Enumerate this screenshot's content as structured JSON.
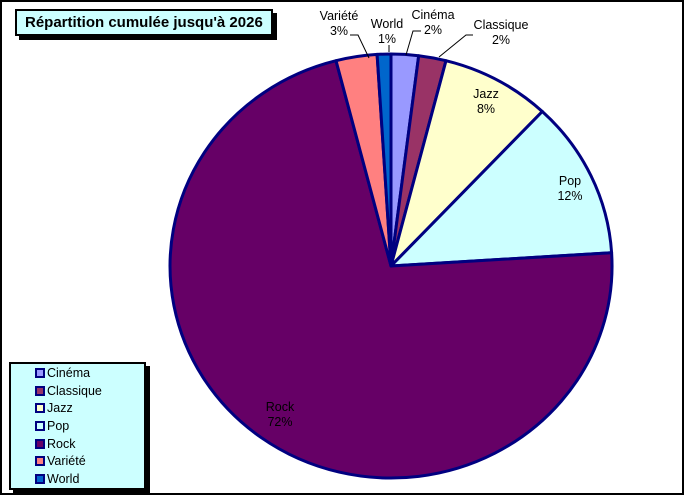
{
  "chart_data": {
    "type": "pie",
    "title": "Répartition cumulée jusqu'à 2026",
    "unit": "%",
    "start_angle_deg": 0,
    "direction": "clockwise",
    "slice_border_color": "#000080",
    "leader_line_color": "#000000",
    "background_color": "#FFFFFF",
    "panel_color": "#CCFFFF",
    "panel_border_color": "#000000",
    "legend_position": "bottom-left",
    "slices": [
      {
        "name": "Cinéma",
        "value": 2,
        "pct_label": "2%",
        "color": "#9999FF",
        "label_placement": "outside"
      },
      {
        "name": "Classique",
        "value": 2,
        "pct_label": "2%",
        "color": "#993366",
        "label_placement": "outside"
      },
      {
        "name": "Jazz",
        "value": 8,
        "pct_label": "8%",
        "color": "#FFFFCC",
        "label_placement": "inside"
      },
      {
        "name": "Pop",
        "value": 12,
        "pct_label": "12%",
        "color": "#CCFFFF",
        "label_placement": "inside"
      },
      {
        "name": "Rock",
        "value": 72,
        "pct_label": "72%",
        "color": "#660066",
        "label_placement": "inside"
      },
      {
        "name": "Variété",
        "value": 3,
        "pct_label": "3%",
        "color": "#FF8080",
        "label_placement": "outside"
      },
      {
        "name": "World",
        "value": 1,
        "pct_label": "1%",
        "color": "#0066CC",
        "label_placement": "outside"
      }
    ]
  }
}
